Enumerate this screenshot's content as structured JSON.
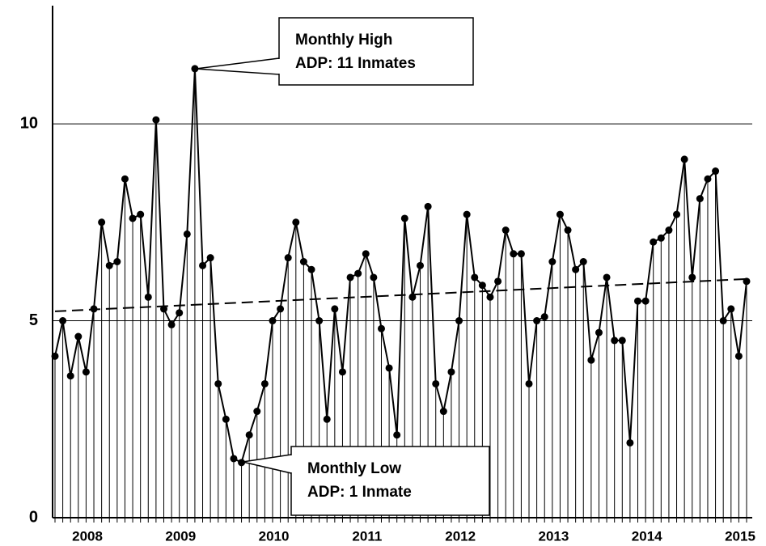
{
  "chart_data": {
    "type": "line",
    "categories": [
      null,
      null,
      null,
      null,
      null,
      "2008",
      null,
      null,
      null,
      null,
      null,
      null,
      null,
      null,
      null,
      null,
      null,
      "2009",
      null,
      null,
      null,
      null,
      null,
      null,
      null,
      null,
      null,
      null,
      null,
      "2010",
      null,
      null,
      null,
      null,
      null,
      null,
      null,
      null,
      null,
      null,
      null,
      "2011",
      null,
      null,
      null,
      null,
      null,
      null,
      null,
      null,
      null,
      null,
      null,
      "2012",
      null,
      null,
      null,
      null,
      null,
      null,
      null,
      null,
      null,
      null,
      null,
      "2013",
      null,
      null,
      null,
      null,
      null,
      null,
      null,
      null,
      null,
      null,
      null,
      "2014",
      null,
      null,
      null,
      null,
      null,
      null,
      null,
      null,
      null,
      null,
      null,
      "2015"
    ],
    "series": [
      {
        "color": "#000000",
        "values": [
          4.1,
          5.0,
          3.6,
          4.6,
          3.7,
          5.3,
          7.5,
          6.4,
          6.5,
          8.6,
          7.6,
          7.7,
          5.6,
          10.1,
          5.3,
          4.9,
          5.2,
          7.2,
          11.4,
          6.4,
          6.6,
          3.4,
          2.5,
          1.5,
          1.4,
          2.1,
          2.7,
          3.4,
          5.0,
          5.3,
          6.6,
          7.5,
          6.5,
          6.3,
          5.0,
          2.5,
          5.3,
          3.7,
          6.1,
          6.2,
          6.7,
          6.1,
          4.8,
          3.8,
          2.1,
          7.6,
          5.6,
          6.4,
          7.9,
          3.4,
          2.7,
          3.7,
          5.0,
          7.7,
          6.1,
          5.9,
          5.6,
          6.0,
          7.3,
          6.7,
          6.7,
          3.4,
          5.0,
          5.1,
          6.5,
          7.7,
          7.3,
          6.3,
          6.5,
          4.0,
          4.7,
          6.1,
          4.5,
          4.5,
          1.9,
          5.5,
          5.5,
          7.0,
          7.1,
          7.3,
          7.7,
          9.1,
          6.1,
          8.1,
          8.6,
          8.8,
          5.0,
          5.3,
          4.1,
          6.0
        ]
      }
    ],
    "trendline": [
      5.24,
      6.06
    ],
    "ylim": [
      0,
      13
    ],
    "yticks": [
      0,
      5,
      10
    ],
    "grid": true,
    "annotations": [
      [
        "Monthly High",
        "ADP:  11 Inmates"
      ],
      [
        "Monthly Low",
        "ADP:  1 Inmate"
      ]
    ]
  }
}
